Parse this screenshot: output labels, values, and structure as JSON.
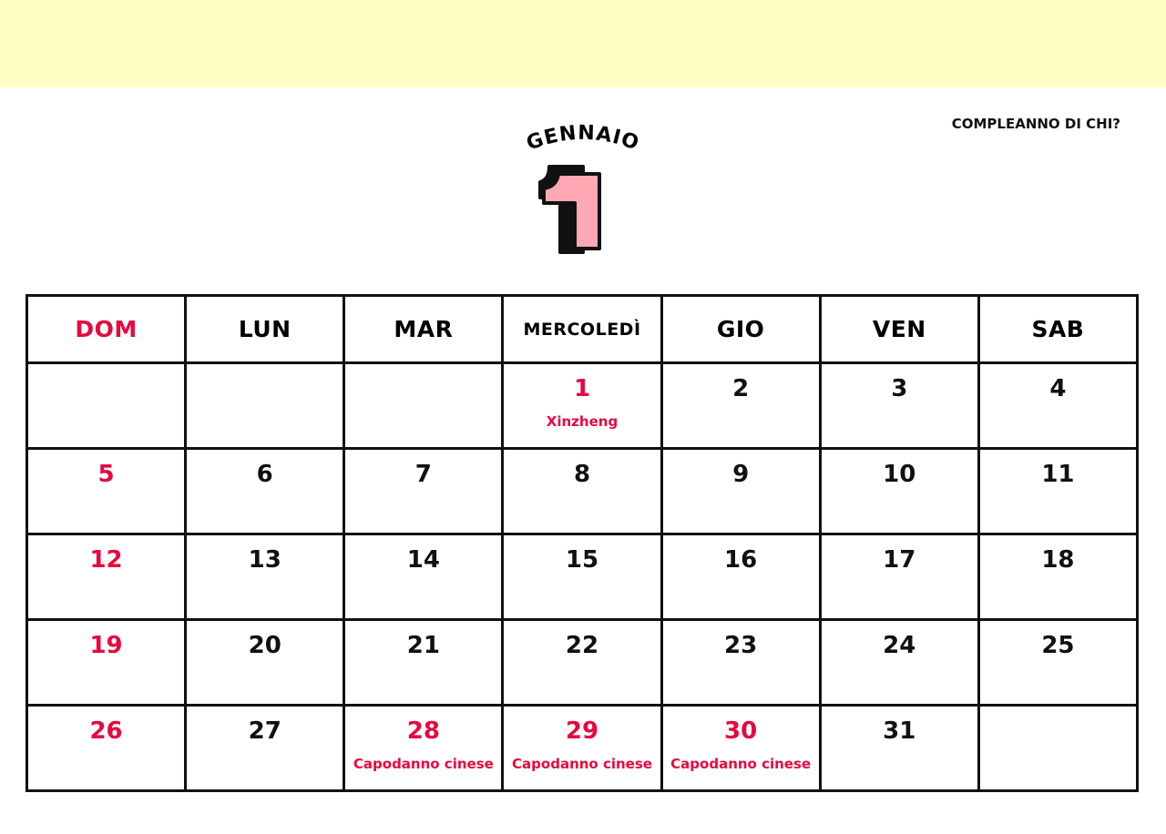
{
  "header": {
    "month_name": "GENNAIO",
    "month_number": "1",
    "birthday_label": "COMPLEANNO DI CHI?"
  },
  "colors": {
    "banner": "#fefec4",
    "accent": "#e8083e",
    "number_fill": "#ffa8b4"
  },
  "weekdays": [
    "DOM",
    "LUN",
    "MAR",
    "MERCOLEDÌ",
    "GIO",
    "VEN",
    "SAB"
  ],
  "weeks": [
    [
      {
        "d": ""
      },
      {
        "d": ""
      },
      {
        "d": ""
      },
      {
        "d": "1",
        "red": true,
        "note": "Xinzheng"
      },
      {
        "d": "2"
      },
      {
        "d": "3"
      },
      {
        "d": "4"
      }
    ],
    [
      {
        "d": "5",
        "red": true
      },
      {
        "d": "6"
      },
      {
        "d": "7"
      },
      {
        "d": "8"
      },
      {
        "d": "9"
      },
      {
        "d": "10"
      },
      {
        "d": "11"
      }
    ],
    [
      {
        "d": "12",
        "red": true
      },
      {
        "d": "13"
      },
      {
        "d": "14"
      },
      {
        "d": "15"
      },
      {
        "d": "16"
      },
      {
        "d": "17"
      },
      {
        "d": "18"
      }
    ],
    [
      {
        "d": "19",
        "red": true
      },
      {
        "d": "20"
      },
      {
        "d": "21"
      },
      {
        "d": "22"
      },
      {
        "d": "23"
      },
      {
        "d": "24"
      },
      {
        "d": "25"
      }
    ],
    [
      {
        "d": "26",
        "red": true
      },
      {
        "d": "27"
      },
      {
        "d": "28",
        "red": true,
        "note": "Capodanno cinese"
      },
      {
        "d": "29",
        "red": true,
        "note": "Capodanno cinese"
      },
      {
        "d": "30",
        "red": true,
        "note": "Capodanno cinese"
      },
      {
        "d": "31"
      },
      {
        "d": ""
      }
    ]
  ]
}
